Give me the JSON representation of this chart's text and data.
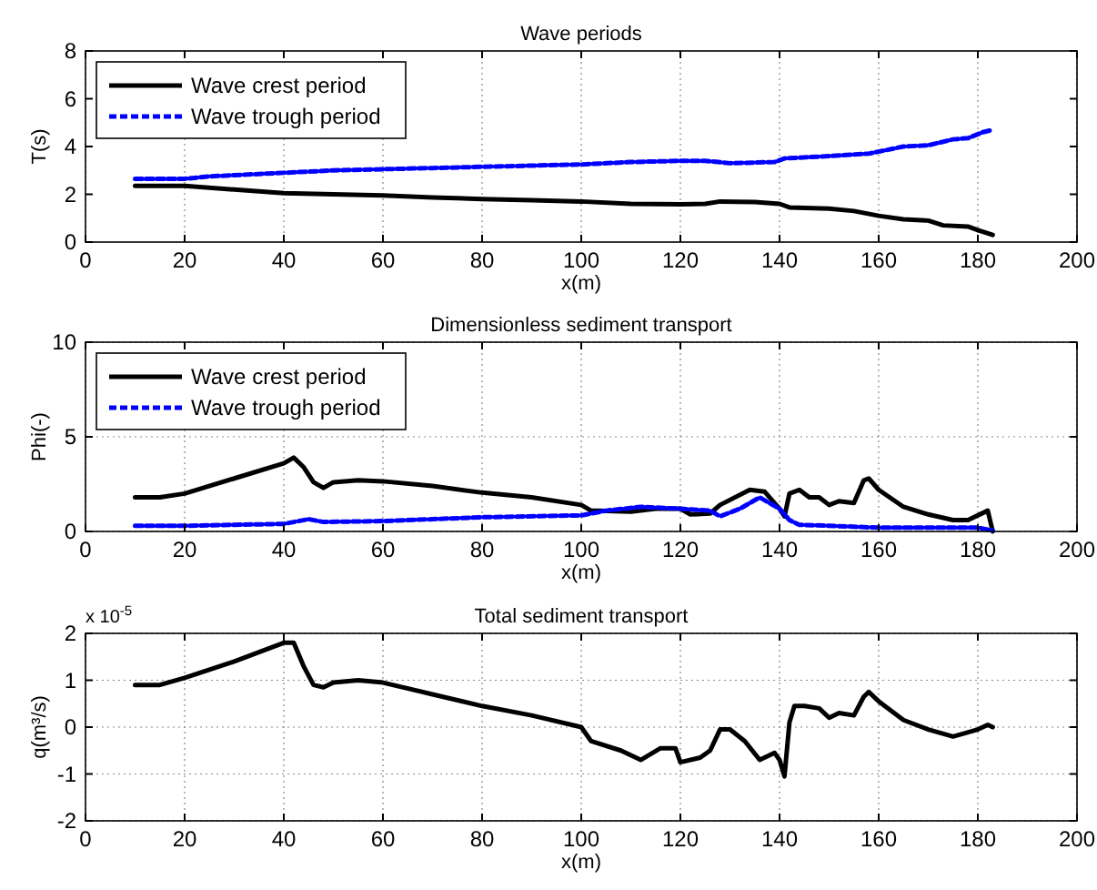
{
  "chart_data": [
    {
      "type": "line",
      "title": "Wave periods",
      "xlabel": "x(m)",
      "ylabel": "T(s)",
      "xlim": [
        0,
        200
      ],
      "xticks": [
        0,
        20,
        40,
        60,
        80,
        100,
        120,
        140,
        160,
        180,
        200
      ],
      "ylim": [
        0,
        8
      ],
      "yticks": [
        0,
        2,
        4,
        6,
        8
      ],
      "grid": "x",
      "legend": "top left",
      "series": [
        {
          "name": "Wave crest period",
          "color": "#000000",
          "line_style": "solid",
          "x": [
            10,
            20,
            30,
            40,
            50,
            60,
            70,
            80,
            90,
            100,
            110,
            120,
            125,
            128,
            135,
            140,
            142,
            150,
            155,
            160,
            165,
            170,
            173,
            178,
            180,
            183
          ],
          "values": [
            2.35,
            2.35,
            2.2,
            2.05,
            2.0,
            1.95,
            1.87,
            1.8,
            1.75,
            1.7,
            1.6,
            1.58,
            1.6,
            1.7,
            1.68,
            1.6,
            1.45,
            1.4,
            1.3,
            1.1,
            0.95,
            0.9,
            0.7,
            0.65,
            0.5,
            0.3
          ]
        },
        {
          "name": "Wave trough period",
          "color": "#0000ff",
          "line_style": "dashed",
          "x": [
            10,
            20,
            25,
            30,
            40,
            50,
            60,
            70,
            80,
            90,
            100,
            110,
            120,
            125,
            130,
            139,
            141,
            150,
            158,
            165,
            170,
            175,
            178,
            181,
            183
          ],
          "values": [
            2.65,
            2.65,
            2.75,
            2.8,
            2.9,
            3.0,
            3.05,
            3.1,
            3.15,
            3.2,
            3.25,
            3.35,
            3.4,
            3.4,
            3.3,
            3.35,
            3.5,
            3.6,
            3.7,
            4.0,
            4.05,
            4.3,
            4.35,
            4.6,
            4.7
          ]
        }
      ]
    },
    {
      "type": "line",
      "title": "Dimensionless sediment transport",
      "xlabel": "x(m)",
      "ylabel": "Phi(-)",
      "xlim": [
        0,
        200
      ],
      "xticks": [
        0,
        20,
        40,
        60,
        80,
        100,
        120,
        140,
        160,
        180,
        200
      ],
      "ylim": [
        0,
        10
      ],
      "yticks": [
        0,
        5,
        10
      ],
      "grid": true,
      "legend": "top left",
      "series": [
        {
          "name": "Wave crest period",
          "color": "#000000",
          "line_style": "solid",
          "x": [
            10,
            15,
            20,
            30,
            40,
            42,
            44,
            46,
            48,
            50,
            55,
            60,
            70,
            80,
            90,
            100,
            102,
            110,
            115,
            120,
            122,
            126,
            128,
            134,
            137,
            140,
            141,
            142,
            144,
            146,
            148,
            150,
            152,
            155,
            157,
            158,
            160,
            165,
            170,
            175,
            178,
            182,
            183
          ],
          "values": [
            1.8,
            1.8,
            2.0,
            2.8,
            3.6,
            3.9,
            3.4,
            2.6,
            2.3,
            2.6,
            2.7,
            2.65,
            2.4,
            2.05,
            1.8,
            1.4,
            1.1,
            1.05,
            1.2,
            1.2,
            0.9,
            0.95,
            1.4,
            2.2,
            2.1,
            1.2,
            0.8,
            2.0,
            2.2,
            1.8,
            1.8,
            1.4,
            1.6,
            1.5,
            2.7,
            2.8,
            2.2,
            1.3,
            0.9,
            0.6,
            0.6,
            1.1,
            0
          ]
        },
        {
          "name": "Wave trough period",
          "color": "#0000ff",
          "line_style": "dashed",
          "x": [
            10,
            20,
            40,
            45,
            48,
            60,
            80,
            100,
            105,
            112,
            120,
            126,
            128,
            132,
            136,
            140,
            142,
            144,
            150,
            160,
            180,
            183
          ],
          "values": [
            0.3,
            0.3,
            0.4,
            0.65,
            0.5,
            0.55,
            0.75,
            0.85,
            1.1,
            1.3,
            1.2,
            1.1,
            0.8,
            1.2,
            1.8,
            1.2,
            0.6,
            0.35,
            0.3,
            0.2,
            0.2,
            0.05
          ]
        }
      ]
    },
    {
      "type": "line",
      "title": "Total sediment transport",
      "xlabel": "x(m)",
      "ylabel": "q(m³/s)",
      "annotations": [
        "x 10$^{-5}$"
      ],
      "xlim": [
        0,
        200
      ],
      "xticks": [
        0,
        20,
        40,
        60,
        80,
        100,
        120,
        140,
        160,
        180,
        200
      ],
      "ylim": [
        -2,
        2
      ],
      "yticks": [
        -2,
        -1,
        0,
        1,
        2
      ],
      "grid": true,
      "legend": false,
      "series": [
        {
          "color": "#000000",
          "line_style": "solid",
          "x": [
            10,
            15,
            20,
            30,
            40,
            42,
            44,
            46,
            48,
            50,
            55,
            60,
            70,
            80,
            90,
            100,
            102,
            108,
            112,
            116,
            119,
            120,
            124,
            126,
            128,
            130,
            133,
            136,
            139,
            140,
            141,
            142,
            143,
            145,
            148,
            150,
            152,
            155,
            157,
            158,
            160,
            165,
            170,
            175,
            180,
            182,
            183
          ],
          "values": [
            0.9,
            0.9,
            1.05,
            1.4,
            1.8,
            1.8,
            1.3,
            0.9,
            0.85,
            0.95,
            1.0,
            0.95,
            0.7,
            0.45,
            0.25,
            0.0,
            -0.3,
            -0.5,
            -0.7,
            -0.45,
            -0.45,
            -0.75,
            -0.65,
            -0.5,
            -0.05,
            -0.05,
            -0.3,
            -0.7,
            -0.55,
            -0.7,
            -1.05,
            0.1,
            0.45,
            0.45,
            0.4,
            0.2,
            0.3,
            0.25,
            0.65,
            0.75,
            0.55,
            0.15,
            -0.05,
            -0.2,
            -0.05,
            0.05,
            0.0
          ]
        }
      ]
    }
  ]
}
